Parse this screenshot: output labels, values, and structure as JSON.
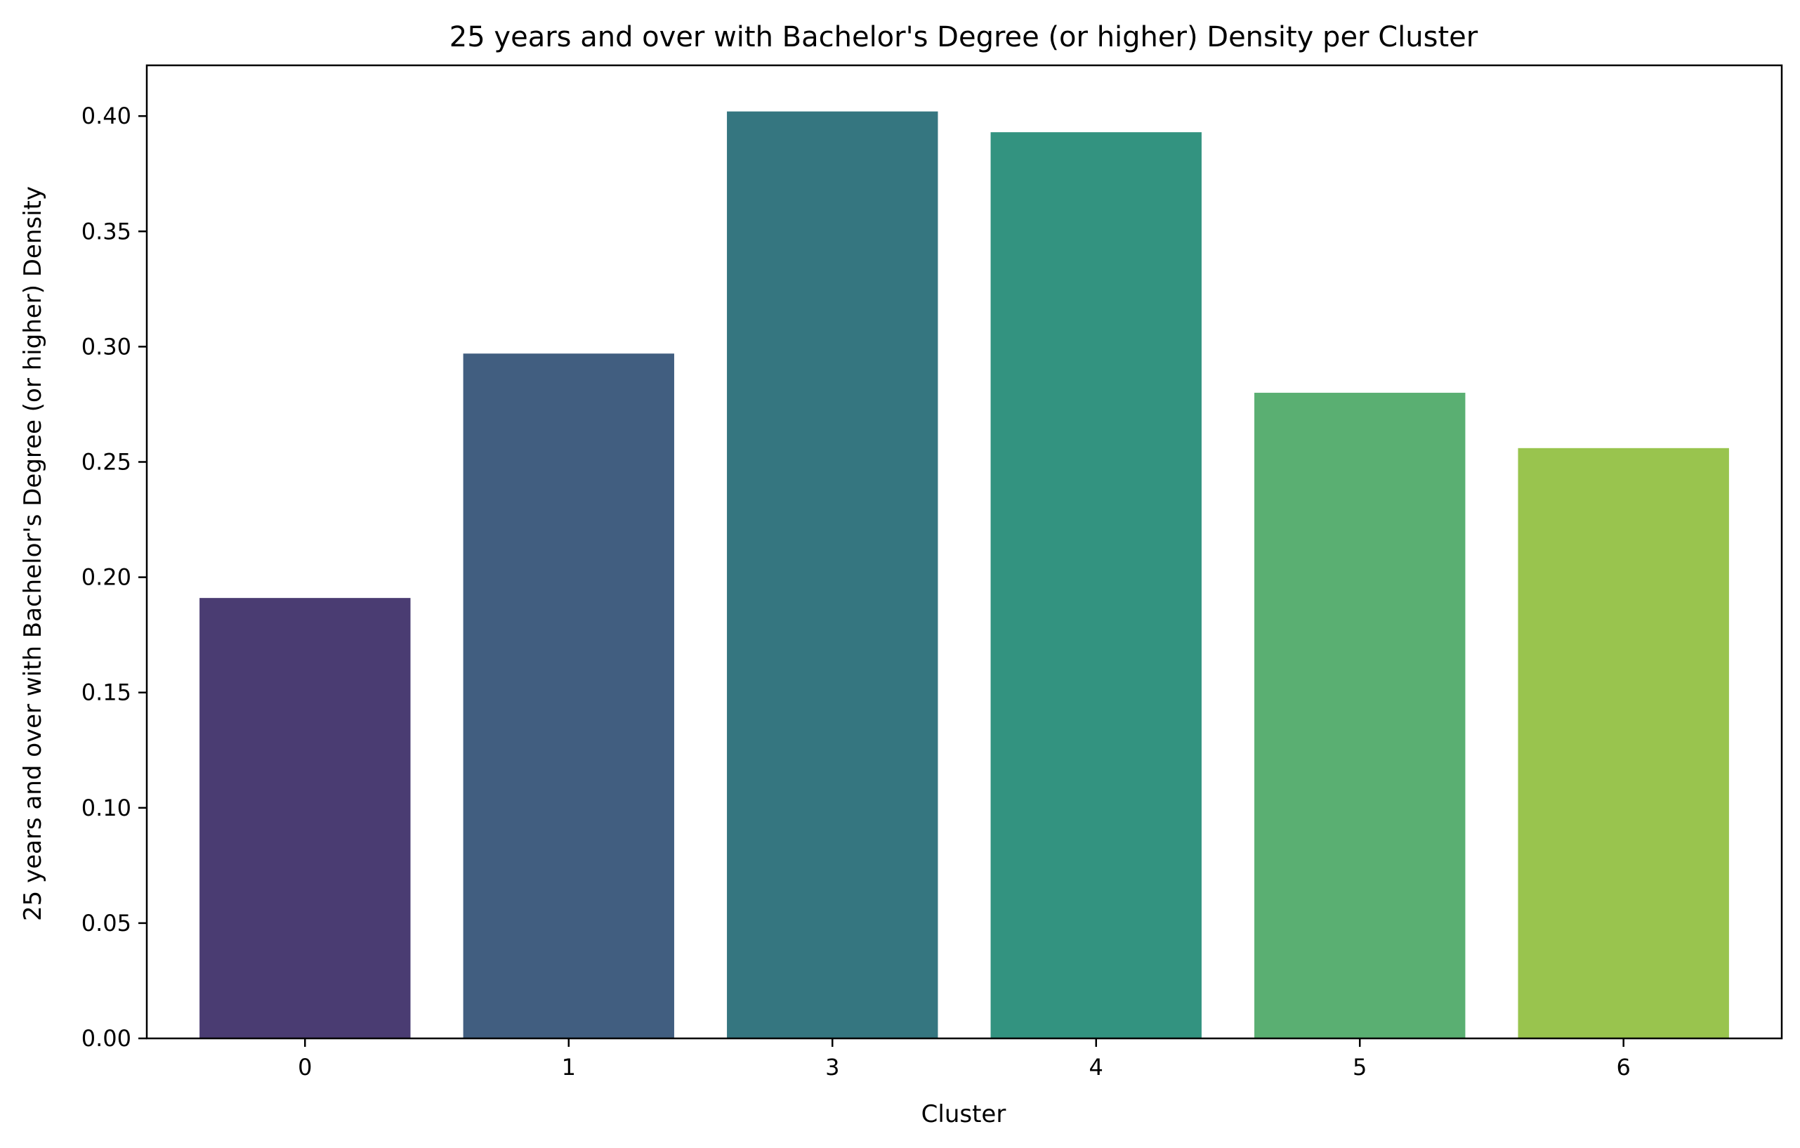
{
  "chart_data": {
    "type": "bar",
    "title": "25 years and over with Bachelor's Degree (or higher) Density per Cluster",
    "xlabel": "Cluster",
    "ylabel": "25 years and over with Bachelor's Degree (or higher) Density",
    "categories": [
      "0",
      "1",
      "3",
      "4",
      "5",
      "6"
    ],
    "values": [
      0.191,
      0.297,
      0.402,
      0.393,
      0.28,
      0.256
    ],
    "colors": [
      "#4a3c72",
      "#415e80",
      "#357680",
      "#339380",
      "#5aaf72",
      "#99c44e"
    ],
    "ylim": [
      0,
      0.422
    ],
    "yticks": [
      "0.00",
      "0.05",
      "0.10",
      "0.15",
      "0.20",
      "0.25",
      "0.30",
      "0.35",
      "0.40"
    ],
    "grid": false,
    "legend": "none"
  }
}
